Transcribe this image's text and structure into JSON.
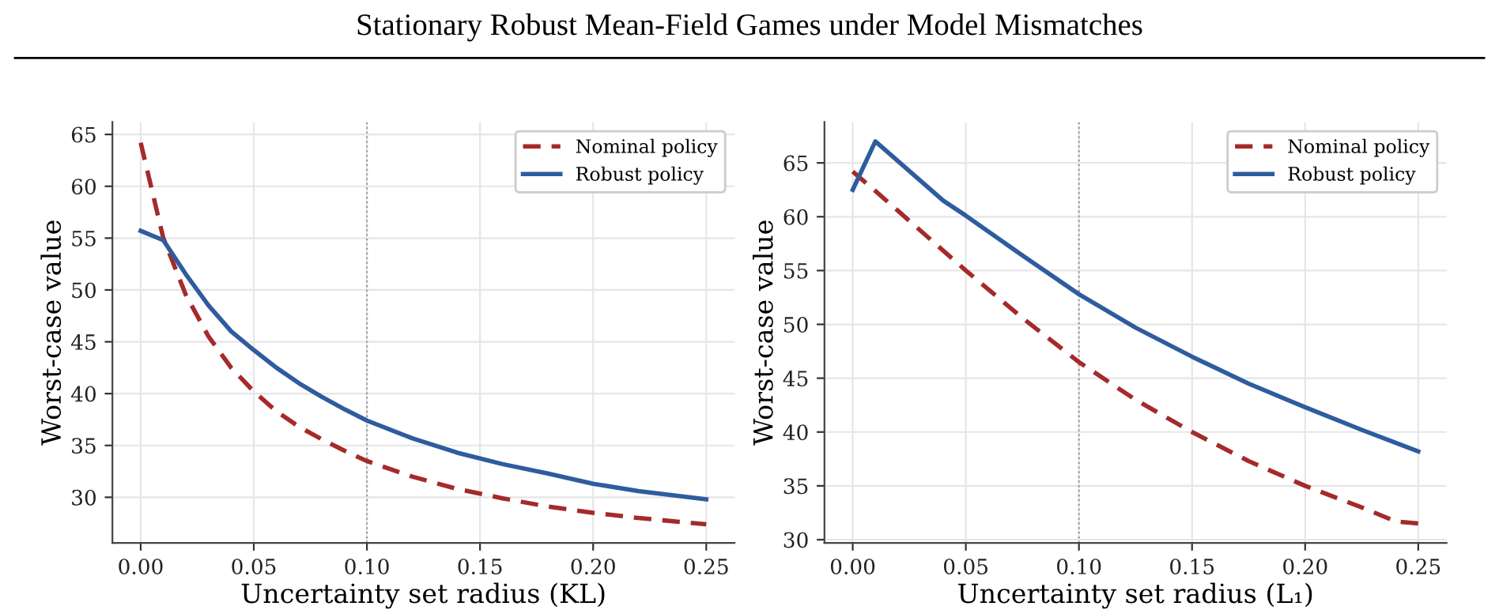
{
  "chart_data": [
    {
      "type": "line",
      "annotations": [
        "Stationary Robust Mean-Field Games under Model Mismatches"
      ],
      "xlabel": "Uncertainty set radius (KL)",
      "ylabel": "Worst-case value",
      "xlim": [
        -0.0125,
        0.2625
      ],
      "xticks": [
        {
          "value": 0,
          "label": "0.00"
        },
        0.05,
        {
          "value": 0.1,
          "label": "0.10"
        },
        0.15,
        {
          "value": 0.2,
          "label": "0.20"
        },
        0.25
      ],
      "ylim": [
        25.6,
        66.2
      ],
      "yticks": [
        30,
        35,
        40,
        45,
        50,
        55,
        60,
        65
      ],
      "grid": true,
      "legend": "top right",
      "ref_lines": [
        {
          "axis": "x",
          "value": 0.1,
          "color": "#999999",
          "line_style": "dotted"
        }
      ],
      "series": [
        {
          "name": "Nominal policy",
          "color": "#a52a2a",
          "line_style": "dashed",
          "x": [
            0,
            0.01,
            0.02,
            0.03,
            0.04,
            0.05,
            0.06,
            0.07,
            0.08,
            0.09,
            0.1,
            0.12,
            0.14,
            0.16,
            0.18,
            0.2,
            0.22,
            0.25
          ],
          "values": [
            64.2,
            55,
            49.5,
            45.5,
            42.5,
            40.2,
            38.3,
            36.8,
            35.6,
            34.5,
            33.5,
            32,
            30.8,
            29.9,
            29.1,
            28.5,
            28,
            27.4
          ]
        },
        {
          "name": "Robust policy",
          "color": "#2e5c9e",
          "line_style": "solid",
          "x": [
            0,
            0.01,
            0.02,
            0.03,
            0.04,
            0.05,
            0.06,
            0.07,
            0.08,
            0.09,
            0.1,
            0.12,
            0.14,
            0.16,
            0.18,
            0.2,
            0.22,
            0.25
          ],
          "values": [
            55.7,
            54.8,
            51.5,
            48.5,
            46,
            44.2,
            42.5,
            41,
            39.7,
            38.5,
            37.4,
            35.7,
            34.3,
            33.2,
            32.3,
            31.3,
            30.6,
            29.8
          ]
        }
      ]
    },
    {
      "type": "line",
      "xlabel": "Uncertainty set radius (L₁)",
      "ylabel": "Worst-case value",
      "xlim": [
        -0.0125,
        0.2625
      ],
      "xticks": [
        {
          "value": 0,
          "label": "0.00"
        },
        0.05,
        {
          "value": 0.1,
          "label": "0.10"
        },
        0.15,
        {
          "value": 0.2,
          "label": "0.20"
        },
        0.25
      ],
      "ylim": [
        29.7,
        68.8
      ],
      "yticks": [
        30,
        35,
        40,
        45,
        50,
        55,
        60,
        65
      ],
      "grid": true,
      "legend": "top right",
      "ref_lines": [
        {
          "axis": "x",
          "value": 0.1,
          "color": "#999999",
          "line_style": "dotted"
        }
      ],
      "series": [
        {
          "name": "Nominal policy",
          "color": "#a52a2a",
          "line_style": "dashed",
          "x": [
            0,
            0.01,
            0.03,
            0.05,
            0.075,
            0.1,
            0.125,
            0.15,
            0.175,
            0.2,
            0.225,
            0.24,
            0.25
          ],
          "values": [
            64.2,
            62.4,
            58.7,
            55,
            50.6,
            46.5,
            43,
            40,
            37.3,
            35,
            33,
            31.7,
            31.5
          ]
        },
        {
          "name": "Robust policy",
          "color": "#2e5c9e",
          "line_style": "solid",
          "x": [
            0,
            0.01,
            0.04,
            0.05,
            0.075,
            0.1,
            0.125,
            0.15,
            0.175,
            0.2,
            0.225,
            0.25
          ],
          "values": [
            62.5,
            67,
            61.5,
            60.1,
            56.4,
            52.8,
            49.7,
            47,
            44.5,
            42.3,
            40.2,
            38.2
          ]
        }
      ]
    }
  ]
}
